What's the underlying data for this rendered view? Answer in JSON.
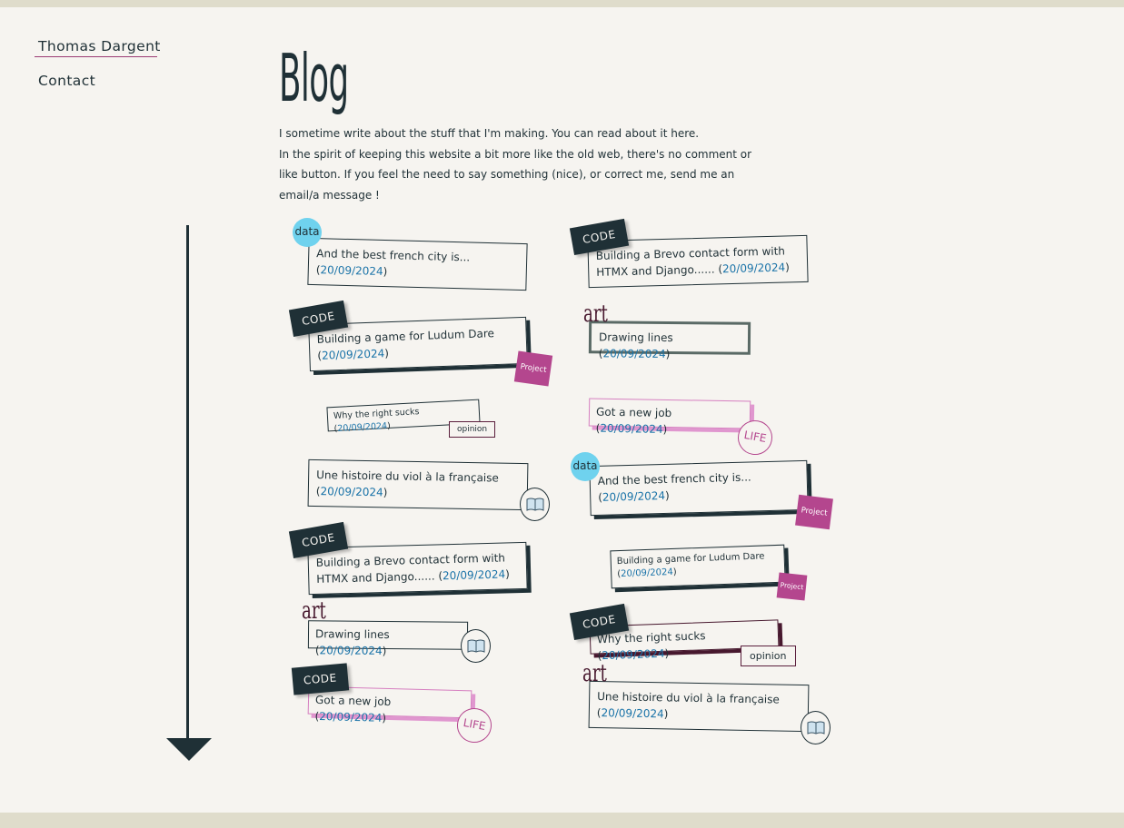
{
  "nav": {
    "home": "Thomas Dargent",
    "contact": "Contact"
  },
  "page": {
    "title": "Blog",
    "intro1": "I sometime write about the stuff that I'm making. You can read about it here.",
    "intro2": "In the spirit of keeping this website a bit more like the old web, there's no comment or like button. If you feel the need to say something (nice), or correct me, send me an email/a message !"
  },
  "tags": {
    "code": "CODE",
    "data": "data",
    "art": "art",
    "project": "Project",
    "opinion": "opinion",
    "life": "LIFE"
  },
  "posts": [
    {
      "title": "And the best french city is...",
      "date": "20/09/2024"
    },
    {
      "title": "Building a Brevo contact form with HTMX and Django...",
      "date": "20/09/2024"
    },
    {
      "title": "Building a game for Ludum Dare",
      "date": "20/09/2024"
    },
    {
      "title": "Drawing lines",
      "date": "20/09/2024"
    },
    {
      "title": "Why the right sucks",
      "date": "20/09/2024"
    },
    {
      "title": "Got a new job",
      "date": "20/09/2024"
    },
    {
      "title": "Une histoire du viol à la française",
      "date": "20/09/2024"
    },
    {
      "title": "And the best french city is...",
      "date": "20/09/2024"
    },
    {
      "title": "Building a Brevo contact form with HTMX and Django...",
      "date": "20/09/2024"
    },
    {
      "title": "Building a game for Ludum Dare",
      "date": "20/09/2024"
    },
    {
      "title": "Drawing lines",
      "date": "20/09/2024"
    },
    {
      "title": "Why the right sucks",
      "date": "20/09/2024"
    },
    {
      "title": "Got a new job",
      "date": "20/09/2024"
    },
    {
      "title": "Une histoire du viol à la française",
      "date": "20/09/2024"
    }
  ]
}
